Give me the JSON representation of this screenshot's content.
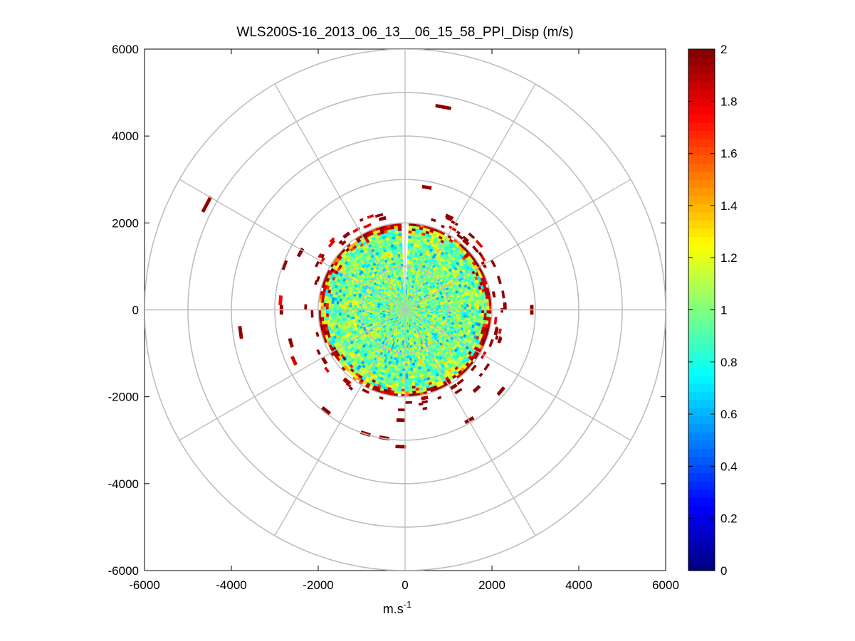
{
  "chart_data": {
    "type": "heatmap",
    "subtype": "polar-ppi",
    "title": "WLS200S-16_2013_06_13__06_15_58_PPI_Disp (m/s)",
    "xlabel": "m.s",
    "xlabel_sup": "-1",
    "ylabel": "",
    "xlim": [
      -6000,
      6000
    ],
    "ylim": [
      -6000,
      6000
    ],
    "x_ticks": [
      "-6000",
      "-4000",
      "-2000",
      "0",
      "2000",
      "4000",
      "6000"
    ],
    "y_ticks": [
      "6000",
      "4000",
      "2000",
      "0",
      "-2000",
      "-4000",
      "-6000"
    ],
    "x_tick_values": [
      -6000,
      -4000,
      -2000,
      0,
      2000,
      4000,
      6000
    ],
    "y_tick_values": [
      6000,
      4000,
      2000,
      0,
      -2000,
      -4000,
      -6000
    ],
    "polar_rings": [
      1000,
      2000,
      3000,
      4000,
      5000,
      6000
    ],
    "polar_spokes_deg": [
      0,
      30,
      60,
      90,
      120,
      150,
      180,
      210,
      240,
      270,
      300,
      330
    ],
    "data_core": {
      "max_range": 2000,
      "missing_sector_deg": [
        -3,
        3
      ],
      "dominant_value": 0.95,
      "value_range": [
        0.5,
        1.3
      ],
      "edge_value": 1.95
    },
    "outlier_patches": [
      {
        "x": 880,
        "y": 4670,
        "value": 1.97
      },
      {
        "x": 500,
        "y": 2820,
        "value": 1.97
      },
      {
        "x": -4570,
        "y": 2430,
        "value": 1.97
      },
      {
        "x": -2410,
        "y": 1320,
        "value": 1.97
      },
      {
        "x": -2780,
        "y": 1030,
        "value": 1.97
      },
      {
        "x": -2870,
        "y": 220,
        "value": 1.75
      },
      {
        "x": -2850,
        "y": 0,
        "value": 1.97
      },
      {
        "x": -3790,
        "y": -520,
        "value": 1.97
      },
      {
        "x": -2630,
        "y": -760,
        "value": 1.97
      },
      {
        "x": -2560,
        "y": -1170,
        "value": 1.85
      },
      {
        "x": -1820,
        "y": -2320,
        "value": 1.97
      },
      {
        "x": -910,
        "y": -2850,
        "value": 1.97
      },
      {
        "x": -480,
        "y": -2950,
        "value": 1.97
      },
      {
        "x": -100,
        "y": -2540,
        "value": 1.97
      },
      {
        "x": -100,
        "y": -3150,
        "value": 1.97
      },
      {
        "x": 2920,
        "y": 0,
        "value": 1.97
      },
      {
        "x": 2300,
        "y": 80,
        "value": 1.97
      },
      {
        "x": 2210,
        "y": -1870,
        "value": 1.97
      },
      {
        "x": 1650,
        "y": -1820,
        "value": 1.97
      },
      {
        "x": 1480,
        "y": -2540,
        "value": 1.97
      },
      {
        "x": 450,
        "y": -2030,
        "value": 1.9
      },
      {
        "x": 1400,
        "y": 1560,
        "value": 1.97
      },
      {
        "x": 1020,
        "y": 2140,
        "value": 1.97
      },
      {
        "x": -1350,
        "y": 1720,
        "value": 1.97
      },
      {
        "x": -520,
        "y": 2100,
        "value": 1.97
      },
      {
        "x": -1860,
        "y": -1170,
        "value": 1.97
      },
      {
        "x": 1120,
        "y": -1770,
        "value": 1.97
      },
      {
        "x": -1350,
        "y": -1650,
        "value": 1.97
      },
      {
        "x": 2100,
        "y": -500,
        "value": 1.97
      }
    ],
    "colorbar": {
      "min": 0,
      "max": 2,
      "ticks": [
        "0",
        "0.2",
        "0.4",
        "0.6",
        "0.8",
        "1",
        "1.2",
        "1.4",
        "1.6",
        "1.8",
        "2"
      ],
      "tick_values": [
        0,
        0.2,
        0.4,
        0.6,
        0.8,
        1,
        1.2,
        1.4,
        1.6,
        1.8,
        2
      ],
      "colormap": "jet"
    },
    "grid": true,
    "colors": {
      "grid": "#bebebe",
      "axis": "#000000",
      "background": "#ffffff"
    }
  }
}
